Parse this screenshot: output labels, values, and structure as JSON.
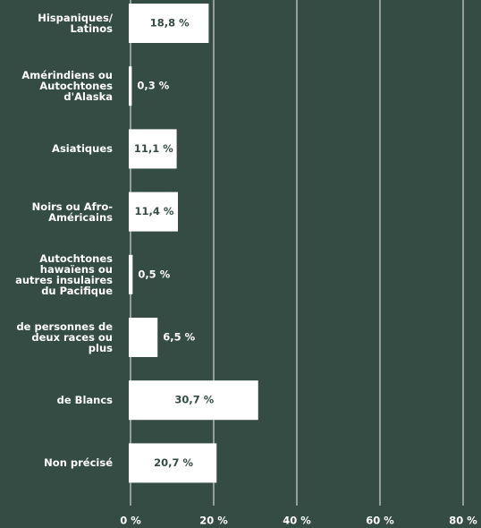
{
  "chart_data": {
    "type": "bar",
    "orientation": "horizontal",
    "categories": [
      "Hispaniques/ Latinos",
      "Amérindiens ou Autochtones d'Alaska",
      "Asiatiques",
      "Noirs ou Afro-Américains",
      "Autochtones hawaïens ou autres insulaires du Pacifique",
      "de personnes de deux races ou plus",
      "de Blancs",
      "Non précisé"
    ],
    "values": [
      18.8,
      0.3,
      11.1,
      11.4,
      0.5,
      6.5,
      30.7,
      20.7
    ],
    "value_labels": [
      "18,8 %",
      "0,3 %",
      "11,1 %",
      "11,4 %",
      "0,5 %",
      "6,5 %",
      "30,7 %",
      "20,7 %"
    ],
    "color": "#ffffff",
    "xlim": [
      0,
      80
    ],
    "xticks": [
      {
        "value": 0,
        "label": "0 %"
      },
      {
        "value": 20,
        "label": "20 %"
      },
      {
        "value": 40,
        "label": "40 %"
      },
      {
        "value": 60,
        "label": "60 %"
      },
      {
        "value": 80,
        "label": "80 %"
      }
    ],
    "grid": true
  }
}
